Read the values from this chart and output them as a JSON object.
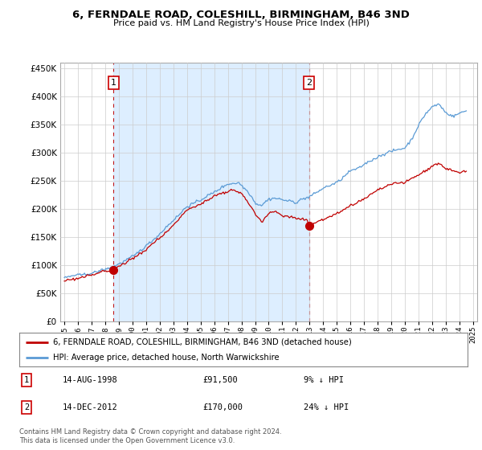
{
  "title": "6, FERNDALE ROAD, COLESHILL, BIRMINGHAM, B46 3ND",
  "subtitle": "Price paid vs. HM Land Registry's House Price Index (HPI)",
  "legend_line1": "6, FERNDALE ROAD, COLESHILL, BIRMINGHAM, B46 3ND (detached house)",
  "legend_line2": "HPI: Average price, detached house, North Warwickshire",
  "annotation1_label": "1",
  "annotation1_date": "14-AUG-1998",
  "annotation1_price": "£91,500",
  "annotation1_hpi": "9% ↓ HPI",
  "annotation1_year": 1998.62,
  "annotation1_value": 91500,
  "annotation2_label": "2",
  "annotation2_date": "14-DEC-2012",
  "annotation2_price": "£170,000",
  "annotation2_hpi": "24% ↓ HPI",
  "annotation2_year": 2012.96,
  "annotation2_value": 170000,
  "footer": "Contains HM Land Registry data © Crown copyright and database right 2024.\nThis data is licensed under the Open Government Licence v3.0.",
  "hpi_color": "#5b9bd5",
  "price_color": "#c00000",
  "dot_color": "#c00000",
  "background_color": "#ffffff",
  "fill_color": "#ddeeff",
  "grid_color": "#cccccc",
  "ylim": [
    0,
    460000
  ],
  "yticks": [
    0,
    50000,
    100000,
    150000,
    200000,
    250000,
    300000,
    350000,
    400000,
    450000
  ],
  "xlabel_years": [
    1995,
    1996,
    1997,
    1998,
    1999,
    2000,
    2001,
    2002,
    2003,
    2004,
    2005,
    2006,
    2007,
    2008,
    2009,
    2010,
    2011,
    2012,
    2013,
    2014,
    2015,
    2016,
    2017,
    2018,
    2019,
    2020,
    2021,
    2022,
    2023,
    2024,
    2025
  ]
}
